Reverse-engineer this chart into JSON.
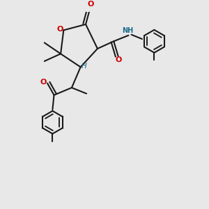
{
  "bg_color": "#e8e8e8",
  "bond_color": "#1a1a1a",
  "o_color": "#cc0000",
  "n_color": "#1a6b8a",
  "h_color": "#1a6b8a",
  "lw": 1.5,
  "dbl_sep": 0.018,
  "ring_r": 0.155,
  "xlim": [
    -0.05,
    2.0
  ],
  "ylim": [
    -1.6,
    1.05
  ]
}
